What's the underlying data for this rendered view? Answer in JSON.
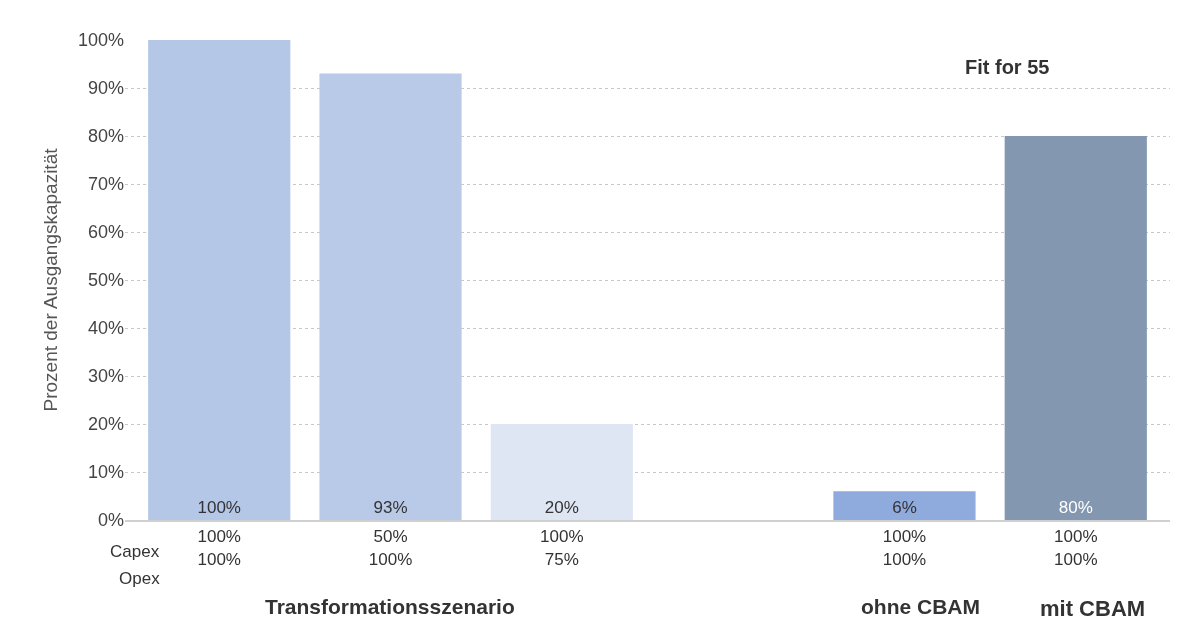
{
  "chart_data": {
    "type": "bar",
    "ylabel": "Prozent der Ausgangskapazität",
    "categories": [
      "100%\n100%",
      "50%\n100%",
      "100%\n75%",
      null,
      "100%\n100%",
      "100%\n100%"
    ],
    "values": [
      100,
      93,
      20,
      null,
      6,
      80
    ],
    "colors": [
      "#b4c7e7",
      "#b9cae8",
      "#dfe6f3",
      "#ffffff",
      "#8faadc",
      "#8497b0"
    ],
    "ylim": [
      0,
      100
    ],
    "yticks": [
      {
        "value": 0,
        "label": "0%"
      },
      {
        "value": 10,
        "label": "10%"
      },
      {
        "value": 20,
        "label": "20%"
      },
      {
        "value": 30,
        "label": "30%"
      },
      {
        "value": 40,
        "label": "40%"
      },
      {
        "value": 50,
        "label": "50%"
      },
      {
        "value": 60,
        "label": "60%"
      },
      {
        "value": 70,
        "label": "70%"
      },
      {
        "value": 80,
        "label": "80%"
      },
      {
        "value": 90,
        "label": "90%"
      },
      {
        "value": 100,
        "label": "100%"
      }
    ],
    "value_labels": [
      "100%",
      "93%",
      "20%",
      null,
      "6%",
      "80%"
    ],
    "annotations": [
      "Fit for 55",
      "Capex",
      "Opex",
      "Transformationsszenario",
      "ohne CBAM",
      "mit CBAM"
    ],
    "grid": "y",
    "legend": false
  }
}
